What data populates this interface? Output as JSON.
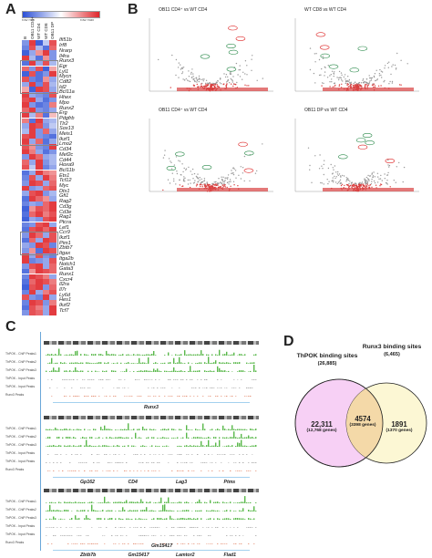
{
  "panels": {
    "a": "A",
    "b": "B",
    "c": "C",
    "d": "D"
  },
  "heatmap": {
    "scale_low": "row min",
    "scale_high": "row max",
    "colors": {
      "low": "#2b4fd6",
      "mid": "#ffffff",
      "high": "#e0262b"
    },
    "column_headers": [
      "B",
      "OB11 CD4+",
      "WT CD4",
      "WT CD8",
      "OB11 DP"
    ],
    "genes": [
      "Ifi51b",
      "Irf8",
      "Nrarp",
      "Il4ra",
      "Runx3",
      "Egr",
      "Lyl1",
      "Mycn",
      "Cd82",
      "Id2",
      "Bcl11a",
      "Hhex",
      "Mpo",
      "Runx2",
      "Erg",
      "Pdgfrb",
      "Tlr2",
      "Sox13",
      "Meis1",
      "Ikzf1",
      "Lmo2",
      "Cd34",
      "Mef2c",
      "Cd44",
      "Hoxa9",
      "Bcl11b",
      "Ets1",
      "Tcf12",
      "Myc",
      "Dtx1",
      "Gfi1",
      "Rag2",
      "Cd3g",
      "Cd3e",
      "Rag1",
      "Ptcra",
      "Lef1",
      "Ccr9",
      "Ikzf1",
      "Pim1",
      "Zbtb7",
      "Itgax",
      "Itga2b",
      "Notch1",
      "Gata3",
      "Runx1",
      "Cxcr4",
      "Il2ra",
      "Il7r",
      "Ly6d",
      "Hes1",
      "Ikzf2",
      "Tcf7"
    ],
    "values": [
      [
        -0.6,
        0.9,
        -0.9,
        -0.3,
        0.8
      ],
      [
        -0.7,
        0.8,
        -0.4,
        -0.8,
        0.7
      ],
      [
        -0.9,
        -0.5,
        0.5,
        0.9,
        -0.6
      ],
      [
        0.9,
        -0.4,
        -0.8,
        0.5,
        -0.6
      ],
      [
        -0.8,
        0.9,
        -0.5,
        0.8,
        -0.4
      ],
      [
        0.7,
        -0.6,
        0.8,
        -0.9,
        0.4
      ],
      [
        -0.9,
        0.8,
        -0.8,
        -0.6,
        0.9
      ],
      [
        0.8,
        -0.7,
        -0.8,
        0.5,
        -0.5
      ],
      [
        -0.5,
        0.9,
        -0.7,
        0.8,
        -0.4
      ],
      [
        0.4,
        -0.9,
        0.9,
        0.8,
        -0.5
      ],
      [
        0.9,
        -0.5,
        -0.6,
        -0.7,
        0.8
      ],
      [
        0.8,
        0.9,
        -0.5,
        -0.8,
        -0.6
      ],
      [
        0.9,
        -0.6,
        -0.8,
        -0.7,
        0.6
      ],
      [
        0.7,
        0.9,
        -0.6,
        -0.7,
        -0.5
      ],
      [
        0.9,
        -0.4,
        0.6,
        -0.8,
        0.3
      ],
      [
        0.6,
        -0.8,
        0.9,
        -0.5,
        -0.4
      ],
      [
        -0.5,
        0.9,
        0.8,
        -0.6,
        -0.3
      ],
      [
        -0.4,
        0.9,
        -0.6,
        0.7,
        -0.5
      ],
      [
        0.8,
        0.9,
        -0.6,
        -0.7,
        -0.8
      ],
      [
        0.9,
        -0.5,
        0.7,
        -0.8,
        -0.5
      ],
      [
        0.8,
        0.5,
        -0.6,
        -0.7,
        0.9
      ],
      [
        0.9,
        0.6,
        -0.5,
        -0.8,
        -0.6
      ],
      [
        -0.6,
        0.9,
        0.7,
        -0.5,
        -0.4
      ],
      [
        0.7,
        -0.5,
        0.9,
        -0.6,
        -0.4
      ],
      [
        0.8,
        -0.3,
        0.9,
        -0.7,
        -0.5
      ],
      [
        -0.8,
        -0.5,
        0.9,
        0.6,
        0.5
      ],
      [
        -0.7,
        0.8,
        -0.5,
        0.9,
        0.6
      ],
      [
        -0.6,
        0.9,
        0.8,
        -0.5,
        0.7
      ],
      [
        0.9,
        -0.6,
        -0.5,
        0.7,
        0.8
      ],
      [
        -0.5,
        0.8,
        0.9,
        -0.6,
        -0.4
      ],
      [
        -0.8,
        0.9,
        0.7,
        0.5,
        -0.5
      ],
      [
        -0.7,
        -0.5,
        -0.6,
        0.7,
        0.9
      ],
      [
        -0.9,
        0.5,
        0.8,
        0.7,
        0.9
      ],
      [
        -0.8,
        0.7,
        0.9,
        0.6,
        0.8
      ],
      [
        -0.9,
        -0.5,
        -0.6,
        0.8,
        0.9
      ],
      [
        -0.7,
        -0.6,
        0.8,
        0.9,
        -0.5
      ],
      [
        -0.8,
        0.8,
        0.9,
        0.7,
        0.9
      ],
      [
        -0.6,
        0.9,
        0.7,
        -0.5,
        0.8
      ],
      [
        -0.8,
        0.7,
        -0.5,
        0.9,
        0.8
      ],
      [
        -0.5,
        -0.6,
        0.9,
        0.8,
        -0.7
      ],
      [
        -0.6,
        0.5,
        -0.8,
        0.9,
        0.8
      ],
      [
        0.9,
        -0.5,
        0.8,
        -0.6,
        -0.7
      ],
      [
        0.9,
        -0.7,
        -0.6,
        -0.5,
        0.8
      ],
      [
        -0.6,
        0.8,
        0.9,
        -0.5,
        0.7
      ],
      [
        -0.8,
        0.5,
        0.9,
        0.8,
        0.7
      ],
      [
        -0.7,
        0.9,
        0.8,
        0.6,
        -0.5
      ],
      [
        -0.8,
        0.7,
        0.9,
        0.8,
        0.6
      ],
      [
        -0.9,
        0.8,
        0.9,
        -0.6,
        0.7
      ],
      [
        -0.7,
        0.9,
        -0.5,
        0.6,
        0.8
      ],
      [
        0.8,
        -0.6,
        -0.7,
        0.9,
        -0.5
      ],
      [
        -0.7,
        0.9,
        0.8,
        -0.6,
        0.6
      ],
      [
        -0.8,
        0.8,
        0.6,
        -0.5,
        0.9
      ],
      [
        -0.6,
        0.8,
        0.7,
        -0.5,
        0.9
      ]
    ],
    "boxed_groups": [
      [
        4,
        9
      ],
      [
        14,
        19
      ],
      [
        37,
        40
      ]
    ]
  },
  "volcano": [
    {
      "title": "OB11 CD4⁺ vs WT CD4"
    },
    {
      "title": "WT CD8 vs WT CD4"
    },
    {
      "title": "OB11 CD4⁺ vs WT CD4"
    },
    {
      "title": "OB11 DP vs WT CD4"
    }
  ],
  "tracks": {
    "genes_block1": [
      "Runx3"
    ],
    "genes_block2": [
      "Gp162",
      "CD4",
      "Lag3",
      "Ptms"
    ],
    "genes_block3": [
      "Zbtb7b",
      "Gm15417",
      "Lamtor2",
      "Flad1"
    ],
    "gene_bottom": "Gm15417",
    "track_labels": [
      "ThPOK - ChIP Peaks1",
      "ThPOK - ChIP Peaks2",
      "ThPOK - ChIP Peaks3",
      "ThPOK - Input Peaks",
      "ThPOK - Input Peaks",
      "Runx3 Peaks"
    ]
  },
  "venn": {
    "left_title": "ThPOK binding sites",
    "left_count": "(26,885)",
    "right_title": "Runx3 binding sites",
    "right_count": "(6,465)",
    "left_only": "22,311",
    "left_only_genes": "(12,768 genes)",
    "overlap": "4574",
    "overlap_genes": "(3398 genes)",
    "right_only": "1891",
    "right_only_genes": "(1370 genes)",
    "colors": {
      "left": "#f7d0f5",
      "right": "#fbf6cd",
      "overlap": "#f4d9a8",
      "edge": "#222222"
    }
  }
}
